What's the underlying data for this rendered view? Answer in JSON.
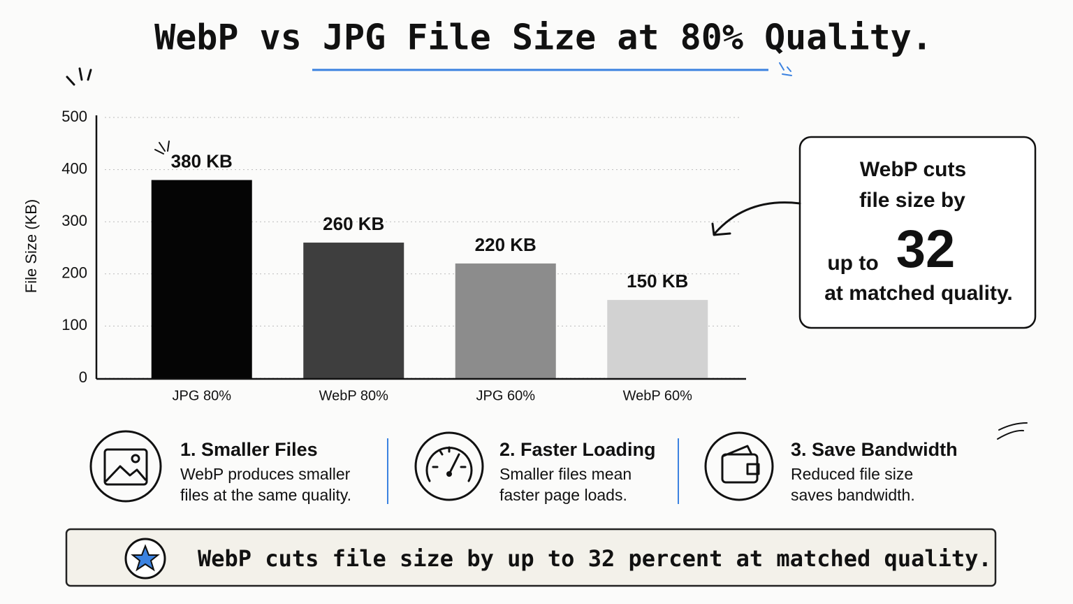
{
  "chart_data": {
    "type": "bar",
    "title": "WebP vs JPG File Size at 80% Quality.",
    "y_label": "File Size (KB)",
    "categories": [
      "JPG 80%",
      "WebP 80%",
      "JPG 60%",
      "WebP 60%"
    ],
    "values": [
      380,
      260,
      220,
      150
    ],
    "value_labels": [
      "380 KB",
      "260 KB",
      "220 KB",
      "150 KB"
    ],
    "colors": [
      "#050505",
      "#3e3e3e",
      "#8c8c8c",
      "#d2d2d2"
    ],
    "ylim": [
      0,
      500
    ],
    "yticks": [
      0,
      100,
      200,
      300,
      400,
      500
    ],
    "grid": true
  },
  "callout": {
    "line1": "WebP cuts",
    "line2": "file size by",
    "prefix": "up to",
    "value": 32,
    "line4": "at matched quality."
  },
  "features": [
    {
      "title": "1. Smaller Files",
      "lines": [
        "WebP produces smaller",
        "files at the same quality."
      ]
    },
    {
      "title": "2. Faster Loading",
      "lines": [
        "Smaller files mean",
        "faster page loads."
      ]
    },
    {
      "title": "3. Save Bandwidth",
      "lines": [
        "Reduced file size",
        "saves bandwidth."
      ]
    }
  ],
  "banner": "WebP cuts file size by up to 32 percent at matched quality."
}
